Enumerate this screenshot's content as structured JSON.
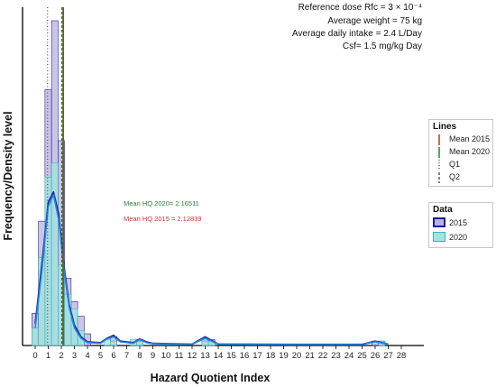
{
  "chart_data": {
    "type": "bar",
    "xlabel": "Hazard Quotient Index",
    "ylabel": "Frequency/Density level",
    "xlim": [
      -1,
      28
    ],
    "x_ticks": [
      0,
      1,
      2,
      3,
      4,
      5,
      6,
      7,
      8,
      9,
      10,
      11,
      12,
      13,
      14,
      15,
      16,
      17,
      18,
      19,
      20,
      21,
      22,
      23,
      24,
      25,
      26,
      27,
      28
    ],
    "bin_width": 0.5,
    "series": [
      {
        "name": "2015",
        "fill": "#b8b2de",
        "stroke": "#2a1f9a",
        "bins_start": [
          -0.25,
          0.25,
          0.75,
          1.25,
          1.75,
          2.25,
          2.75,
          3.25,
          3.75,
          5.75,
          7.75,
          12.75,
          13.25,
          25.75,
          26.25
        ],
        "heights": [
          2.2,
          8.5,
          17.5,
          22.2,
          14.0,
          4.6,
          3.0,
          2.0,
          0.8,
          0.6,
          0.4,
          0.5,
          0.4,
          0.3,
          0.3
        ]
      },
      {
        "name": "2020",
        "fill": "#9fe4e0",
        "stroke": "#39b7b0",
        "bins_start": [
          -0.25,
          0.25,
          0.75,
          1.25,
          1.75,
          2.25,
          2.75,
          3.25,
          5.25,
          5.75,
          7.25,
          7.75,
          12.75,
          13.25,
          26.25
        ],
        "heights": [
          1.2,
          6.0,
          11.5,
          12.5,
          5.5,
          3.5,
          2.5,
          1.0,
          0.4,
          0.3,
          0.4,
          0.3,
          0.3,
          0.3,
          0.3
        ]
      }
    ],
    "density_curves": [
      {
        "name": "2015",
        "color": "#2a1f9a",
        "x": [
          0,
          0.5,
          1,
          1.4,
          1.8,
          2.2,
          2.6,
          3,
          3.5,
          4,
          5,
          5.5,
          6,
          6.5,
          7.5,
          8,
          8.5,
          9,
          12,
          13,
          14,
          15,
          20,
          25,
          26,
          27
        ],
        "y": [
          1.5,
          5.5,
          9.8,
          10.5,
          9.0,
          5.5,
          2.8,
          1.4,
          0.6,
          0.25,
          0.2,
          0.5,
          0.7,
          0.3,
          0.2,
          0.45,
          0.25,
          0.15,
          0.1,
          0.6,
          0.1,
          0.1,
          0.08,
          0.08,
          0.3,
          0.1
        ]
      },
      {
        "name": "2020",
        "color": "#1e88e5",
        "x": [
          0,
          0.5,
          1,
          1.4,
          1.8,
          2.2,
          2.6,
          3,
          3.5,
          4,
          5,
          5.5,
          6,
          6.5,
          7.5,
          8,
          8.5,
          9,
          12,
          13,
          14,
          15,
          20,
          25,
          26,
          27
        ],
        "y": [
          1.2,
          5.0,
          9.5,
          10.3,
          8.6,
          5.2,
          2.6,
          1.2,
          0.5,
          0.2,
          0.15,
          0.45,
          0.6,
          0.25,
          0.15,
          0.4,
          0.2,
          0.12,
          0.08,
          0.5,
          0.08,
          0.08,
          0.06,
          0.06,
          0.25,
          0.08
        ]
      }
    ],
    "ymax": 23,
    "vlines": [
      {
        "name": "Mean 2015",
        "x": 2.12839,
        "color": "#c0392b",
        "dash": "solid"
      },
      {
        "name": "Mean 2020",
        "x": 2.16511,
        "color": "#2e7d32",
        "dash": "solid"
      },
      {
        "name": "Q1",
        "x": 0.95,
        "color": "#333333",
        "dash": "dotted"
      },
      {
        "name": "Q2",
        "x": 2.05,
        "color": "#333333",
        "dash": "dashed"
      }
    ],
    "mean_labels": {
      "hq2020": "Mean HQ 2020= 2.16511",
      "hq2020_color": "#2e7d32",
      "hq2015": "Mean HQ 2015 = 2.12839",
      "hq2015_color": "#c0392b"
    },
    "annotations": [
      "Reference dose Rfc = 3 × 10⁻⁴",
      "Average weight = 75 kg",
      "Average daily intake = 2.4 L/Day",
      "Csf= 1.5 mg/kg Day"
    ],
    "legend_lines": {
      "title": "Lines",
      "items": [
        {
          "label": "Mean 2015",
          "color": "#c0392b",
          "dash": "solid"
        },
        {
          "label": "Mean 2020",
          "color": "#2e7d32",
          "dash": "solid"
        },
        {
          "label": "Q1",
          "color": "#333333",
          "dash": "dotted"
        },
        {
          "label": "Q2",
          "color": "#333333",
          "dash": "dashed"
        }
      ]
    },
    "legend_data": {
      "title": "Data",
      "items": [
        {
          "label": "2015",
          "fill": "#b8b2de",
          "stroke": "#1a1aa8"
        },
        {
          "label": "2020",
          "fill": "#9fe4e0",
          "stroke": "#39b7b0"
        }
      ]
    }
  }
}
